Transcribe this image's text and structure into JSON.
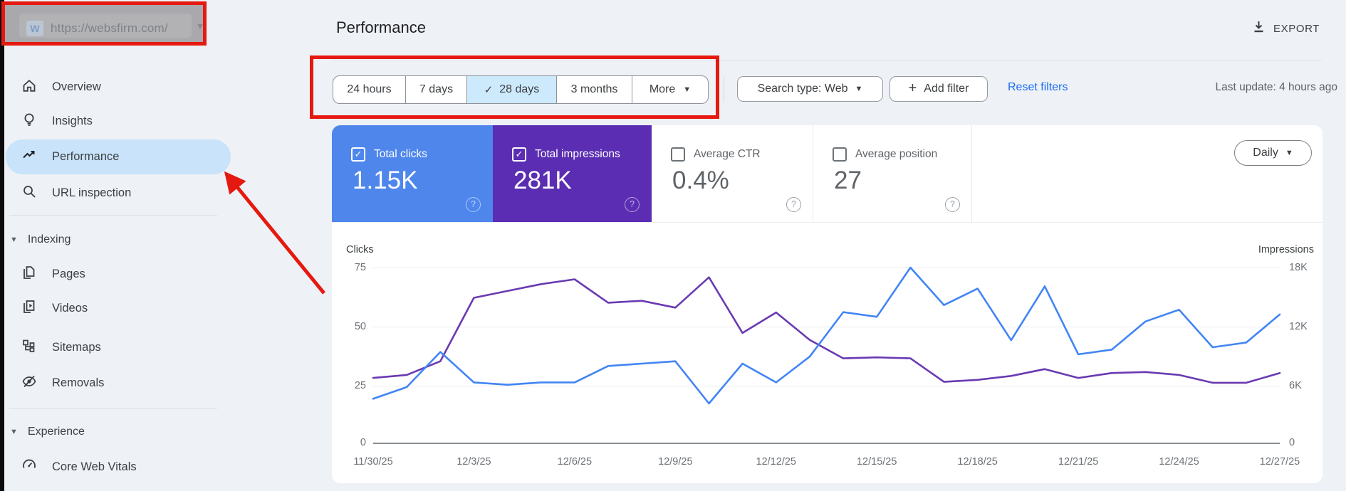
{
  "annotation_color": "#e5190f",
  "property_selector": {
    "logo_letter": "W",
    "url": "https://websfirm.com/"
  },
  "sidebar": {
    "items": [
      {
        "label": "Overview"
      },
      {
        "label": "Insights"
      },
      {
        "label": "Performance",
        "selected": true
      },
      {
        "label": "URL inspection"
      }
    ],
    "sections": [
      {
        "label": "Indexing"
      },
      {
        "label": "Experience"
      }
    ],
    "indexing_items": [
      {
        "label": "Pages"
      },
      {
        "label": "Videos"
      },
      {
        "label": "Sitemaps"
      },
      {
        "label": "Removals"
      }
    ],
    "experience_items": [
      {
        "label": "Core Web Vitals"
      }
    ]
  },
  "header": {
    "title": "Performance",
    "export_label": "EXPORT"
  },
  "filters": {
    "date_tabs": [
      {
        "label": "24 hours",
        "selected": false
      },
      {
        "label": "7 days",
        "selected": false
      },
      {
        "label": "28 days",
        "selected": true,
        "checkmark": "✓"
      },
      {
        "label": "3 months",
        "selected": false
      },
      {
        "label": "More",
        "selected": false,
        "has_caret": true
      }
    ],
    "search_type_label": "Search type: Web",
    "add_filter_label": "Add filter",
    "reset_label": "Reset filters",
    "last_update": "Last update: 4 hours ago"
  },
  "metrics": {
    "cards": [
      {
        "label": "Total clicks",
        "value": "1.15K",
        "checked": true,
        "color": "#4e86ec"
      },
      {
        "label": "Total impressions",
        "value": "281K",
        "checked": true,
        "color": "#5b2db2"
      },
      {
        "label": "Average CTR",
        "value": "0.4%",
        "checked": false
      },
      {
        "label": "Average position",
        "value": "27",
        "checked": false
      }
    ],
    "granularity": "Daily"
  },
  "chart_data": {
    "type": "line",
    "num_points": 28,
    "x_tick_labels": [
      "11/30/25",
      "12/3/25",
      "12/6/25",
      "12/9/25",
      "12/12/25",
      "12/15/25",
      "12/18/25",
      "12/21/25",
      "12/24/25",
      "12/27/25"
    ],
    "x_tick_indices": [
      0,
      3,
      6,
      9,
      12,
      15,
      18,
      21,
      24,
      27
    ],
    "left_axis": {
      "label": "Clicks",
      "ticks": [
        "0",
        "25",
        "50",
        "75"
      ],
      "units_per_gridline": 25
    },
    "right_axis": {
      "label": "Impressions",
      "ticks": [
        "0",
        "6K",
        "12K",
        "18K"
      ],
      "units_per_gridline": 6000
    },
    "grid": true,
    "legend": "none",
    "series": [
      {
        "name": "Total clicks",
        "axis": "left",
        "color": "#4285f4",
        "values": [
          19,
          24,
          39,
          26,
          25,
          26,
          26,
          33,
          34,
          35,
          17,
          34,
          26,
          37,
          56,
          54,
          75,
          59,
          66,
          44,
          67,
          38,
          40,
          52,
          57,
          41,
          43,
          55
        ]
      },
      {
        "name": "Total impressions",
        "axis": "right",
        "color": "#6a3ab2",
        "values": [
          6700,
          7000,
          8400,
          14900,
          15600,
          16300,
          16800,
          14400,
          14600,
          13900,
          17000,
          11300,
          13400,
          10600,
          8700,
          8800,
          8700,
          6300,
          6500,
          6900,
          7600,
          6700,
          7200,
          7300,
          7000,
          6200,
          6200,
          7200
        ]
      }
    ]
  }
}
